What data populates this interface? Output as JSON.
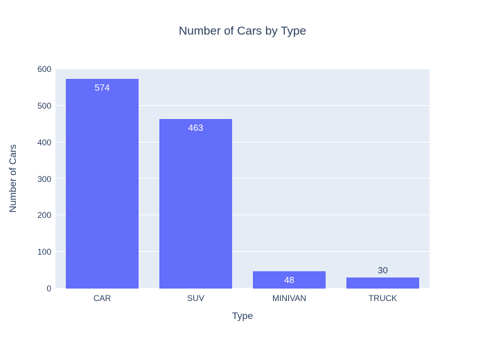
{
  "chart_data": {
    "type": "bar",
    "title": "Number of Cars by Type",
    "xlabel": "Type",
    "ylabel": "Number of Cars",
    "categories": [
      "CAR",
      "SUV",
      "MINIVAN",
      "TRUCK"
    ],
    "values": [
      574,
      463,
      48,
      30
    ],
    "bar_labels": [
      "574",
      "463",
      "48",
      "30"
    ],
    "bar_label_positions": [
      "inside",
      "inside",
      "inside",
      "outside"
    ],
    "ylim": [
      0,
      600
    ],
    "yticks": [
      0,
      100,
      200,
      300,
      400,
      500,
      600
    ],
    "grid": true,
    "legend_position": "none",
    "colors": {
      "bar": "#636efa",
      "plot_background": "#e5ecf6",
      "page_background": "#ffffff",
      "gridline": "#ffffff",
      "text": "#2a3f5f",
      "inside_label": "#ffffff",
      "outside_label": "#2a3f5f"
    }
  }
}
